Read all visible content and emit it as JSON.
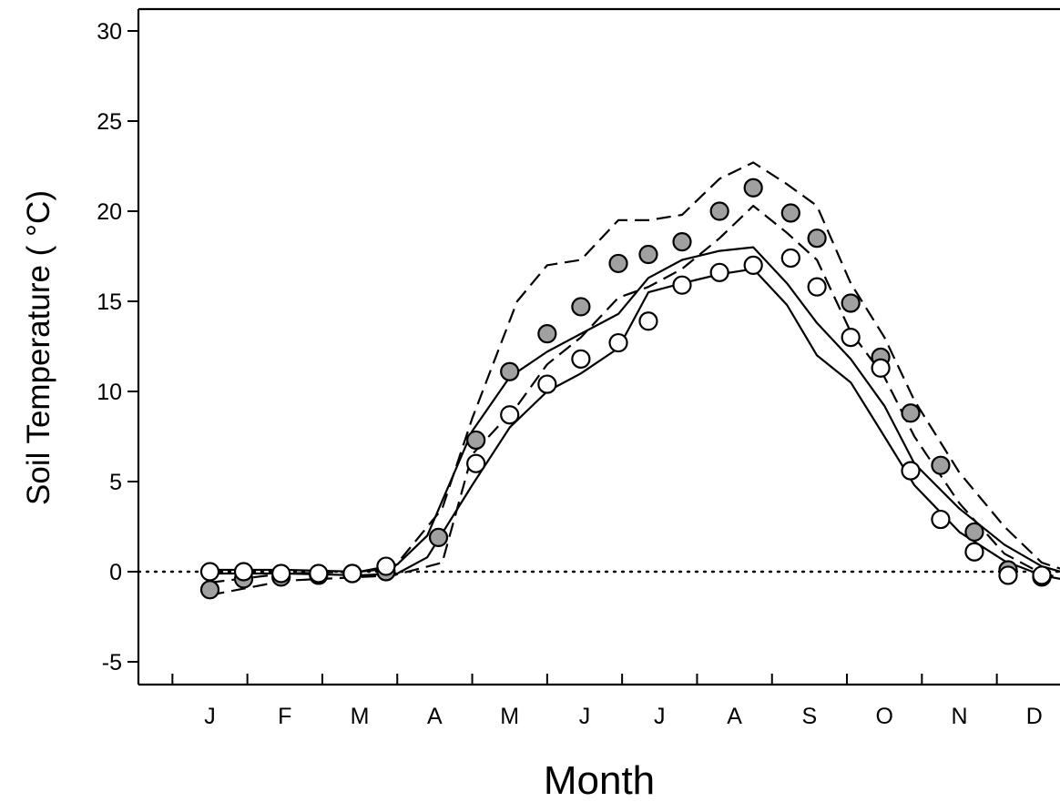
{
  "chart_data": {
    "type": "line",
    "title": "",
    "xlabel": "Month",
    "ylabel": "Soil Temperature ( °C)",
    "ylim": [
      -6,
      30.5
    ],
    "xlim": [
      0,
      12.3
    ],
    "yticks": [
      -5,
      0,
      5,
      10,
      15,
      20,
      25,
      30
    ],
    "xtick_labels": [
      "J",
      "F",
      "M",
      "A",
      "M",
      "J",
      "J",
      "A",
      "S",
      "O",
      "N",
      "D"
    ],
    "month_boundaries": [
      0.5,
      1.5,
      2.5,
      3.5,
      4.5,
      5.5,
      6.5,
      7.5,
      8.5,
      9.5,
      10.5,
      11.5
    ],
    "grid": false,
    "reference_line": {
      "y": 0,
      "style": "dotted"
    },
    "series": [
      {
        "marker": "filled-circle",
        "color": "#a0a0a0",
        "x": [
          0.0,
          0.45,
          0.95,
          1.45,
          1.9,
          2.35,
          3.05,
          3.55,
          4.0,
          4.5,
          4.95,
          5.45,
          5.85,
          6.3,
          6.8,
          7.25,
          7.75,
          8.1,
          8.55,
          8.95,
          9.35,
          9.75,
          10.2,
          10.65,
          11.1,
          11.55
        ],
        "y": [
          -1.0,
          -0.4,
          -0.3,
          -0.2,
          -0.1,
          0.0,
          1.9,
          7.3,
          11.1,
          13.2,
          14.7,
          17.1,
          17.6,
          18.3,
          20.0,
          21.3,
          19.9,
          18.5,
          14.9,
          11.9,
          8.8,
          5.9,
          2.2,
          0.1,
          -0.3,
          -0.4
        ]
      },
      {
        "marker": "open-circle",
        "color": "#ffffff",
        "x": [
          0.0,
          0.45,
          0.95,
          1.45,
          1.9,
          2.35,
          3.55,
          4.0,
          4.5,
          4.95,
          5.45,
          5.85,
          6.3,
          6.8,
          7.25,
          7.75,
          8.1,
          8.55,
          8.95,
          9.35,
          9.75,
          10.2,
          10.65,
          11.1,
          11.55
        ],
        "y": [
          0.0,
          0.0,
          -0.1,
          -0.1,
          -0.1,
          0.3,
          6.0,
          8.7,
          10.4,
          11.8,
          12.7,
          13.9,
          15.9,
          16.6,
          17.0,
          17.4,
          15.8,
          13.0,
          11.3,
          5.6,
          2.9,
          1.1,
          -0.2,
          -0.2,
          -0.2
        ]
      }
    ],
    "bands": [
      {
        "style": "dashed",
        "upper": {
          "x": [
            0.0,
            1.0,
            2.0,
            2.45,
            3.1,
            3.5,
            4.1,
            4.5,
            4.95,
            5.45,
            5.85,
            6.3,
            6.8,
            7.25,
            7.7,
            8.1,
            8.55,
            9.0,
            9.4,
            10.0,
            10.6,
            11.1,
            11.55
          ],
          "y": [
            -0.6,
            -0.1,
            0.0,
            0.2,
            3.5,
            8.5,
            15.0,
            17.0,
            17.3,
            19.5,
            19.5,
            19.8,
            21.8,
            22.7,
            21.5,
            20.3,
            16.0,
            13.0,
            9.5,
            5.5,
            2.5,
            0.5,
            -0.1
          ]
        },
        "lower": {
          "x": [
            0.0,
            1.0,
            2.0,
            2.45,
            3.1,
            3.5,
            4.1,
            4.5,
            4.95,
            5.45,
            5.85,
            6.3,
            6.8,
            7.25,
            7.7,
            8.1,
            8.55,
            9.0,
            9.4,
            10.0,
            10.6,
            11.1,
            11.55
          ],
          "y": [
            -1.3,
            -0.5,
            -0.3,
            -0.2,
            0.5,
            6.5,
            9.2,
            11.5,
            13.0,
            15.2,
            15.8,
            16.8,
            18.5,
            20.3,
            18.8,
            17.3,
            13.3,
            10.8,
            7.5,
            3.8,
            1.0,
            -0.1,
            -0.5
          ]
        }
      },
      {
        "style": "solid",
        "upper": {
          "x": [
            0.0,
            1.0,
            2.0,
            2.5,
            2.9,
            3.5,
            4.0,
            4.5,
            4.95,
            5.45,
            5.85,
            6.3,
            6.8,
            7.25,
            7.7,
            8.1,
            8.55,
            9.0,
            9.4,
            10.0,
            10.6,
            11.1,
            11.6
          ],
          "y": [
            0.1,
            0.1,
            0.0,
            0.4,
            2.0,
            7.8,
            10.8,
            12.2,
            13.2,
            14.3,
            16.3,
            17.3,
            17.8,
            18.0,
            16.0,
            13.8,
            11.8,
            9.2,
            6.0,
            3.5,
            1.5,
            0.3,
            -0.3
          ]
        },
        "lower": {
          "x": [
            0.0,
            1.0,
            2.0,
            2.5,
            2.9,
            3.5,
            4.0,
            4.5,
            4.95,
            5.45,
            5.85,
            6.3,
            6.8,
            7.25,
            7.7,
            8.1,
            8.55,
            9.0,
            9.4,
            10.0,
            10.6,
            11.1,
            11.6
          ],
          "y": [
            -0.1,
            -0.1,
            -0.2,
            -0.1,
            0.8,
            4.8,
            8.0,
            10.0,
            11.0,
            12.4,
            15.5,
            16.0,
            16.5,
            16.8,
            14.8,
            12.0,
            10.5,
            7.5,
            4.8,
            2.2,
            0.6,
            -0.2,
            -0.6
          ]
        }
      }
    ]
  }
}
